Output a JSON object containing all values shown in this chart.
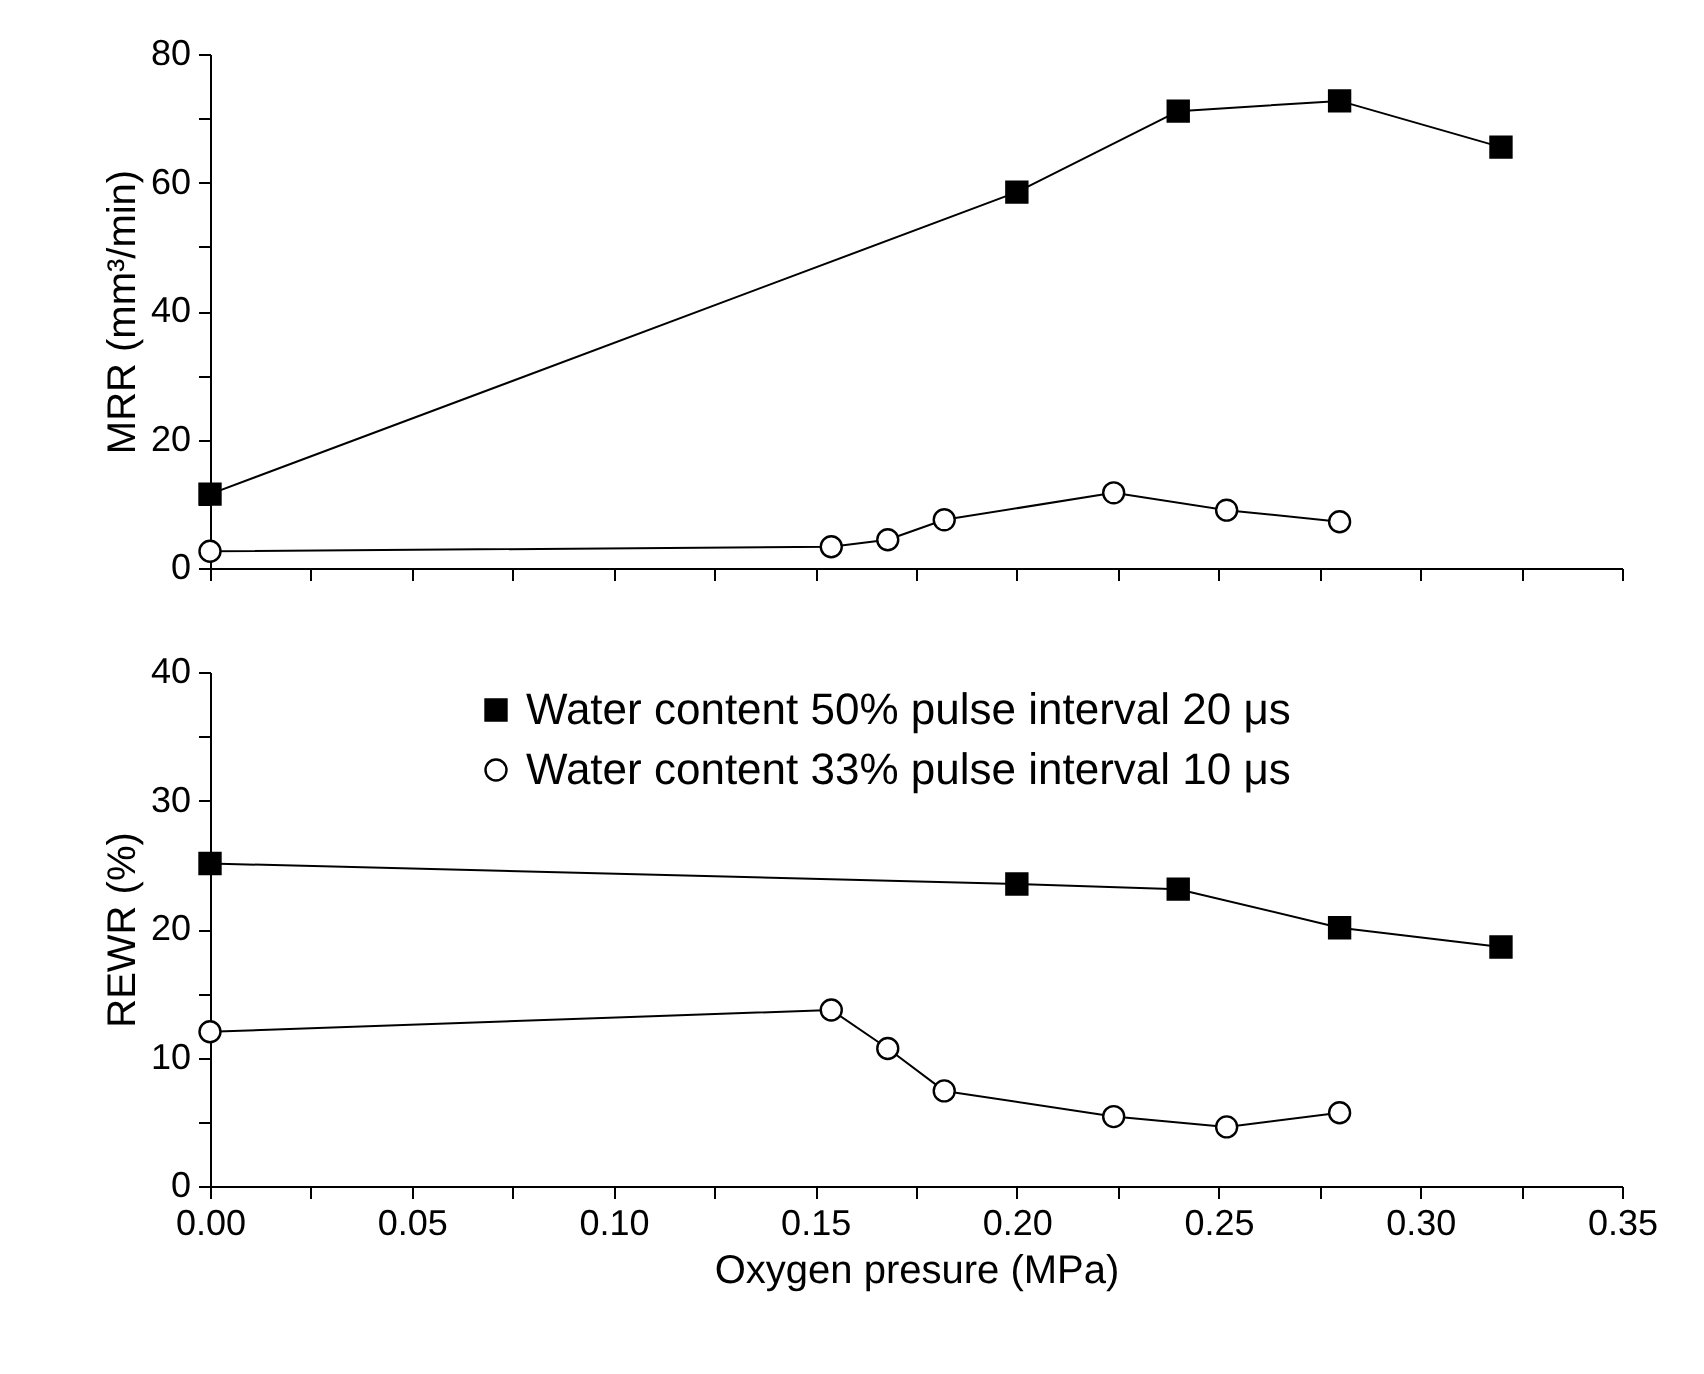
{
  "chart_data": [
    {
      "type": "line",
      "ylabel": "MRR (mm³/min)",
      "xlim": [
        0,
        0.35
      ],
      "ylim": [
        0,
        80
      ],
      "tick_labels": "y",
      "grid": false,
      "line_style": "solid",
      "xticks": [
        0,
        {
          "value": 0.025,
          "label": null
        },
        0.05,
        {
          "value": 0.075,
          "label": null
        },
        0.1,
        {
          "value": 0.125,
          "label": null
        },
        0.15,
        {
          "value": 0.175,
          "label": null
        },
        0.2,
        {
          "value": 0.225,
          "label": null
        },
        0.25,
        {
          "value": 0.275,
          "label": null
        },
        0.3,
        {
          "value": 0.325,
          "label": null
        },
        0.35
      ],
      "yticks": [
        0,
        {
          "value": 10,
          "label": null
        },
        20,
        {
          "value": 30,
          "label": null
        },
        40,
        {
          "value": 50,
          "label": null
        },
        60,
        {
          "value": 70,
          "label": null
        },
        80
      ],
      "series": [
        {
          "color": "#000000",
          "marker": "square",
          "x": [
            0,
            0.2,
            0.24,
            0.28,
            0.32
          ],
          "values": [
            11.5,
            58.5,
            71.1,
            72.7,
            65.5
          ]
        },
        {
          "color": "#000000",
          "marker": "circle",
          "x": [
            0,
            0.154,
            0.168,
            0.182,
            0.224,
            0.252,
            0.28
          ],
          "values": [
            2.6,
            3.3,
            4.4,
            7.5,
            11.7,
            9.0,
            7.2
          ]
        }
      ]
    },
    {
      "type": "line",
      "xlabel": "Oxygen presure (MPa)",
      "ylabel": "REWR (%)",
      "xlim": [
        0,
        0.35
      ],
      "ylim": [
        0,
        40
      ],
      "grid": false,
      "legend": "top",
      "line_style": "solid",
      "xticks": [
        {
          "value": 0,
          "label": "0.00"
        },
        {
          "value": 0.025,
          "label": null
        },
        0.05,
        {
          "value": 0.075,
          "label": null
        },
        {
          "value": 0.1,
          "label": "0.10"
        },
        {
          "value": 0.125,
          "label": null
        },
        0.15,
        {
          "value": 0.175,
          "label": null
        },
        {
          "value": 0.2,
          "label": "0.20"
        },
        {
          "value": 0.225,
          "label": null
        },
        0.25,
        {
          "value": 0.275,
          "label": null
        },
        {
          "value": 0.3,
          "label": "0.30"
        },
        {
          "value": 0.325,
          "label": null
        },
        0.35
      ],
      "yticks": [
        0,
        {
          "value": 5,
          "label": null
        },
        10,
        {
          "value": 15,
          "label": null
        },
        20,
        {
          "value": 25,
          "label": null
        },
        30,
        {
          "value": 35,
          "label": null
        },
        40
      ],
      "series": [
        {
          "name": "Water content 50% pulse interval 20 μs",
          "color": "#000000",
          "marker": "square",
          "x": [
            0,
            0.2,
            0.24,
            0.28,
            0.32
          ],
          "values": [
            25.1,
            23.5,
            23.1,
            20.1,
            18.6
          ]
        },
        {
          "name": "Water content 33% pulse interval 10 μs",
          "color": "#000000",
          "marker": "circle",
          "x": [
            0,
            0.154,
            0.168,
            0.182,
            0.224,
            0.252,
            0.28
          ],
          "values": [
            12.0,
            13.7,
            10.7,
            7.4,
            5.4,
            4.6,
            5.7
          ]
        }
      ]
    }
  ]
}
